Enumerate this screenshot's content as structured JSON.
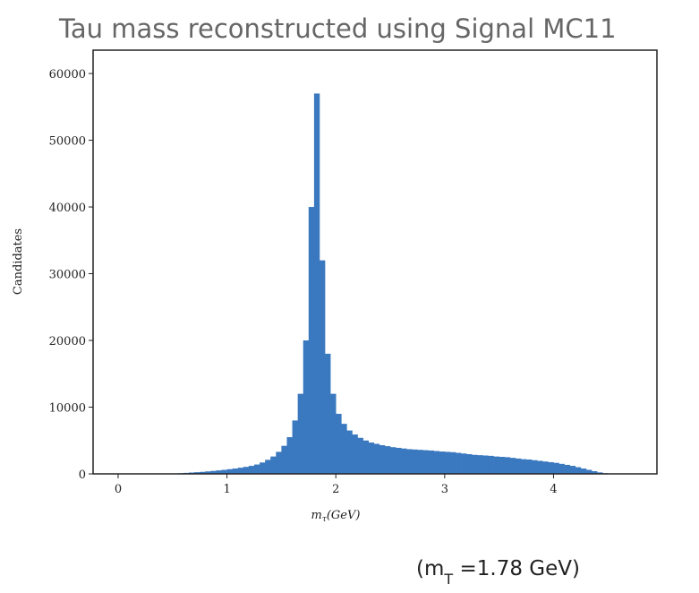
{
  "chart_data": {
    "type": "histogram",
    "title": "Tau mass reconstructed using Signal MC11",
    "x_label": {
      "base": "m",
      "sub": "τ",
      "suffix": "(GeV)"
    },
    "y_label": "Candidates",
    "annotation": {
      "prefix": "(m",
      "sub": "T",
      "suffix": " =1.78 GeV)"
    },
    "color": "#3a78bf",
    "bins": [
      0,
      0.05,
      0.1,
      0.15,
      0.2,
      0.25,
      0.3,
      0.35,
      0.4,
      0.45,
      0.5,
      0.55,
      0.6,
      0.65,
      0.7,
      0.75,
      0.8,
      0.85,
      0.9,
      0.95,
      1,
      1.05,
      1.1,
      1.15,
      1.2,
      1.25,
      1.3,
      1.35,
      1.4,
      1.45,
      1.5,
      1.55,
      1.6,
      1.65,
      1.7,
      1.75,
      1.8,
      1.85,
      1.9,
      1.95,
      2,
      2.05,
      2.1,
      2.15,
      2.2,
      2.25,
      2.3,
      2.35,
      2.4,
      2.45,
      2.5,
      2.55,
      2.6,
      2.65,
      2.7,
      2.75,
      2.8,
      2.85,
      2.9,
      2.95,
      3,
      3.05,
      3.1,
      3.15,
      3.2,
      3.25,
      3.3,
      3.35,
      3.4,
      3.45,
      3.5,
      3.55,
      3.6,
      3.65,
      3.7,
      3.75,
      3.8,
      3.85,
      3.9,
      3.95,
      4,
      4.05,
      4.1,
      4.15,
      4.2,
      4.25,
      4.3,
      4.35,
      4.4,
      4.45,
      4.5,
      4.55,
      4.6
    ],
    "values": [
      0,
      0,
      0,
      0,
      0,
      0,
      0,
      0,
      10,
      30,
      60,
      100,
      150,
      200,
      250,
      300,
      370,
      440,
      520,
      600,
      700,
      800,
      920,
      1050,
      1200,
      1400,
      1700,
      2100,
      2600,
      3300,
      4200,
      5500,
      8000,
      12000,
      20000,
      40000,
      57000,
      32000,
      18000,
      12000,
      9000,
      7500,
      6500,
      5900,
      5400,
      5000,
      4700,
      4500,
      4300,
      4150,
      4000,
      3900,
      3800,
      3700,
      3650,
      3600,
      3550,
      3500,
      3420,
      3350,
      3300,
      3250,
      3150,
      3050,
      2950,
      2850,
      2800,
      2750,
      2700,
      2600,
      2550,
      2500,
      2400,
      2300,
      2200,
      2150,
      2050,
      1950,
      1850,
      1750,
      1650,
      1500,
      1350,
      1200,
      1000,
      800,
      600,
      400,
      220,
      100,
      40,
      10
    ],
    "xlim": [
      -0.23,
      4.95
    ],
    "ylim": [
      0,
      63500
    ],
    "xticks": [
      0,
      1,
      2,
      3,
      4
    ],
    "yticks": [
      0,
      10000,
      20000,
      30000,
      40000,
      50000,
      60000
    ],
    "grid": false
  }
}
